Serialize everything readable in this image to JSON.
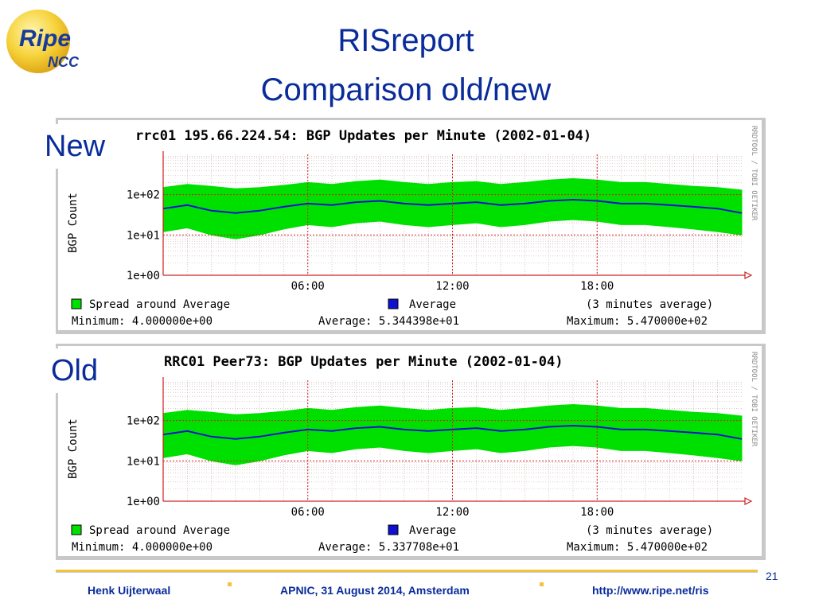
{
  "logo": {
    "text_top": "Ripe",
    "text_bottom": "NCC"
  },
  "slide": {
    "title_line1": "RISreport",
    "title_line2": "Comparison old/new",
    "label_new": "New",
    "label_old": "Old",
    "page_number": "21"
  },
  "footer": {
    "author": "Henk Uijterwaal",
    "event": "APNIC, 31 August 2014, Amsterdam",
    "url": "http://www.ripe.net/ris"
  },
  "colors": {
    "spread": "#00e000",
    "average": "#1010d0",
    "grid": "#d02020",
    "title_blue": "#0a2c9a"
  },
  "chart_data": [
    {
      "type": "area",
      "title": "rrc01 195.66.224.54: BGP Updates per Minute (2002-01-04)",
      "ylabel": "BGP Count",
      "side_text": "RRDTOOL / TOBI OETIKER",
      "yscale": "log",
      "ylim": [
        1,
        1000
      ],
      "y_ticks": [
        "1e+00",
        "1e+01",
        "1e+02"
      ],
      "x_ticks": [
        "06:00",
        "12:00",
        "18:00"
      ],
      "xlim_hours": [
        0,
        24
      ],
      "legend": [
        {
          "name": "Spread around Average"
        },
        {
          "name": "Average"
        },
        {
          "note": "(3 minutes average)"
        }
      ],
      "stats": {
        "minimum": "Minimum: 4.000000e+00",
        "average": "Average: 5.344398e+01",
        "maximum": "Maximum: 5.470000e+02"
      },
      "series": [
        {
          "name": "Average",
          "x_hours": [
            0,
            1,
            2,
            3,
            4,
            5,
            6,
            7,
            8,
            9,
            10,
            11,
            12,
            13,
            14,
            15,
            16,
            17,
            18,
            19,
            20,
            21,
            22,
            23,
            24
          ],
          "values": [
            45,
            55,
            40,
            35,
            40,
            50,
            60,
            55,
            65,
            70,
            60,
            55,
            60,
            65,
            55,
            60,
            70,
            75,
            70,
            60,
            60,
            55,
            50,
            45,
            35
          ]
        },
        {
          "name": "Spread around Average",
          "x_hours": [
            0,
            1,
            2,
            3,
            4,
            5,
            6,
            7,
            8,
            9,
            10,
            11,
            12,
            13,
            14,
            15,
            16,
            17,
            18,
            19,
            20,
            21,
            22,
            23,
            24
          ],
          "low": [
            12,
            15,
            10,
            8,
            10,
            14,
            18,
            16,
            20,
            22,
            18,
            16,
            18,
            20,
            16,
            18,
            22,
            24,
            22,
            18,
            18,
            16,
            14,
            12,
            10
          ],
          "high": [
            150,
            180,
            160,
            140,
            150,
            170,
            200,
            180,
            210,
            230,
            200,
            180,
            200,
            210,
            180,
            200,
            230,
            250,
            230,
            200,
            200,
            180,
            160,
            150,
            130
          ]
        }
      ]
    },
    {
      "type": "area",
      "title": "RRC01 Peer73: BGP Updates per Minute (2002-01-04)",
      "ylabel": "BGP Count",
      "side_text": "RRDTOOL / TOBI OETIKER",
      "yscale": "log",
      "ylim": [
        1,
        1000
      ],
      "y_ticks": [
        "1e+00",
        "1e+01",
        "1e+02"
      ],
      "x_ticks": [
        "06:00",
        "12:00",
        "18:00"
      ],
      "xlim_hours": [
        0,
        24
      ],
      "legend": [
        {
          "name": "Spread around Average"
        },
        {
          "name": "Average"
        },
        {
          "note": "(3 minutes average)"
        }
      ],
      "stats": {
        "minimum": "Minimum: 4.000000e+00",
        "average": "Average: 5.337708e+01",
        "maximum": "Maximum: 5.470000e+02"
      },
      "series": [
        {
          "name": "Average",
          "x_hours": [
            0,
            1,
            2,
            3,
            4,
            5,
            6,
            7,
            8,
            9,
            10,
            11,
            12,
            13,
            14,
            15,
            16,
            17,
            18,
            19,
            20,
            21,
            22,
            23,
            24
          ],
          "values": [
            45,
            55,
            40,
            35,
            40,
            50,
            60,
            55,
            65,
            70,
            60,
            55,
            60,
            65,
            55,
            60,
            70,
            75,
            70,
            60,
            60,
            55,
            50,
            45,
            35
          ]
        },
        {
          "name": "Spread around Average",
          "x_hours": [
            0,
            1,
            2,
            3,
            4,
            5,
            6,
            7,
            8,
            9,
            10,
            11,
            12,
            13,
            14,
            15,
            16,
            17,
            18,
            19,
            20,
            21,
            22,
            23,
            24
          ],
          "low": [
            12,
            15,
            10,
            8,
            10,
            14,
            18,
            16,
            20,
            22,
            18,
            16,
            18,
            20,
            16,
            18,
            22,
            24,
            22,
            18,
            18,
            16,
            14,
            12,
            10
          ],
          "high": [
            150,
            180,
            160,
            140,
            150,
            170,
            200,
            180,
            210,
            230,
            200,
            180,
            200,
            210,
            180,
            200,
            230,
            250,
            230,
            200,
            200,
            180,
            160,
            150,
            130
          ]
        }
      ]
    }
  ]
}
